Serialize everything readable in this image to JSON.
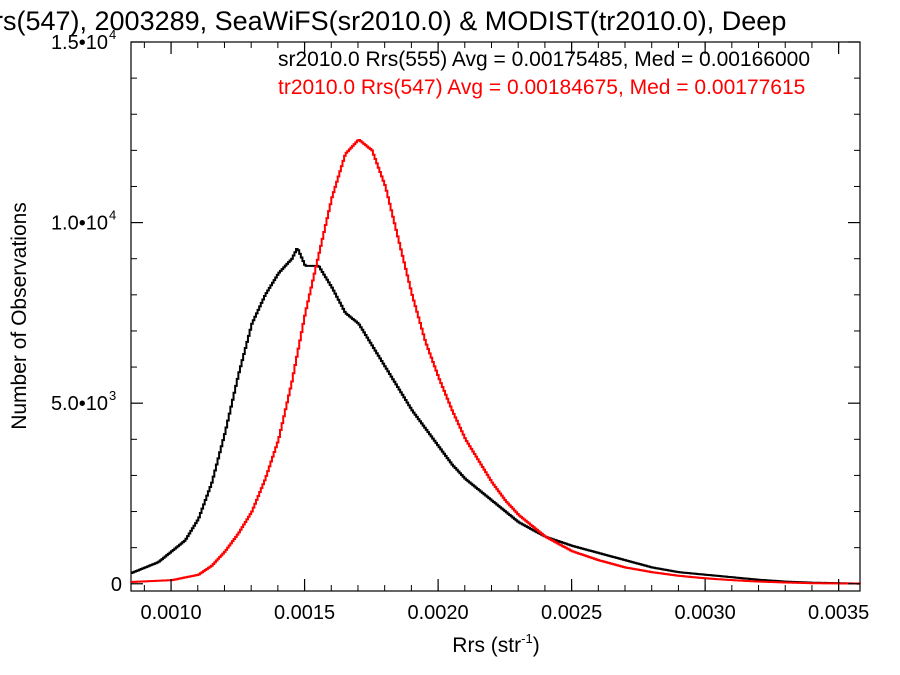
{
  "chart_data": {
    "type": "line",
    "title": "rs(547), 2003289, SeaWiFS(sr2010.0) & MODIST(tr2010.0), Deep",
    "xlabel": "Rrs (str",
    "xlabel_sup": "-1",
    "xlabel_close": ")",
    "ylabel": "Number of Observations",
    "xlim": [
      0.00085,
      0.00358
    ],
    "ylim": [
      -200,
      15000
    ],
    "x_ticks": [
      {
        "value": 0.001,
        "label": "0.0010"
      },
      {
        "value": 0.0015,
        "label": "0.0015"
      },
      {
        "value": 0.002,
        "label": "0.0020"
      },
      {
        "value": 0.0025,
        "label": "0.0025"
      },
      {
        "value": 0.003,
        "label": "0.0030"
      },
      {
        "value": 0.0035,
        "label": "0.0035"
      }
    ],
    "y_ticks": [
      {
        "value": 0,
        "label": "0",
        "sup": ""
      },
      {
        "value": 5000,
        "label": "5.0•10",
        "sup": "3"
      },
      {
        "value": 10000,
        "label": "1.0•10",
        "sup": "4"
      },
      {
        "value": 15000,
        "label": "1.5•10",
        "sup": "4"
      }
    ],
    "annotations": [
      {
        "text": "sr2010.0 Rrs(555) Avg = 0.00175485, Med = 0.00166000",
        "color": "#000000"
      },
      {
        "text": "tr2010.0 Rrs(547) Avg = 0.00184675, Med = 0.00177615",
        "color": "#ff0000"
      }
    ],
    "series": [
      {
        "color": "#000000",
        "points": [
          [
            0.00085,
            300
          ],
          [
            0.00095,
            600
          ],
          [
            0.00105,
            1200
          ],
          [
            0.0011,
            1800
          ],
          [
            0.00115,
            2800
          ],
          [
            0.0012,
            4200
          ],
          [
            0.00125,
            5800
          ],
          [
            0.0013,
            7200
          ],
          [
            0.00135,
            8000
          ],
          [
            0.0014,
            8600
          ],
          [
            0.00145,
            9000
          ],
          [
            0.00147,
            9300
          ],
          [
            0.0015,
            8800
          ],
          [
            0.00155,
            8800
          ],
          [
            0.0016,
            8200
          ],
          [
            0.00165,
            7500
          ],
          [
            0.0017,
            7200
          ],
          [
            0.00175,
            6600
          ],
          [
            0.0018,
            6000
          ],
          [
            0.00185,
            5400
          ],
          [
            0.0019,
            4800
          ],
          [
            0.00195,
            4300
          ],
          [
            0.002,
            3800
          ],
          [
            0.00205,
            3300
          ],
          [
            0.0021,
            2900
          ],
          [
            0.00215,
            2600
          ],
          [
            0.0022,
            2300
          ],
          [
            0.00225,
            2000
          ],
          [
            0.0023,
            1700
          ],
          [
            0.00235,
            1500
          ],
          [
            0.0024,
            1300
          ],
          [
            0.0025,
            1050
          ],
          [
            0.0026,
            850
          ],
          [
            0.0027,
            650
          ],
          [
            0.0028,
            450
          ],
          [
            0.0029,
            320
          ],
          [
            0.003,
            250
          ],
          [
            0.0031,
            180
          ],
          [
            0.0032,
            110
          ],
          [
            0.0033,
            60
          ],
          [
            0.0034,
            30
          ],
          [
            0.00358,
            5
          ]
        ]
      },
      {
        "color": "#ff0000",
        "points": [
          [
            0.00085,
            50
          ],
          [
            0.001,
            100
          ],
          [
            0.0011,
            250
          ],
          [
            0.00115,
            500
          ],
          [
            0.0012,
            900
          ],
          [
            0.00125,
            1400
          ],
          [
            0.0013,
            2000
          ],
          [
            0.00135,
            2900
          ],
          [
            0.0014,
            4000
          ],
          [
            0.00145,
            5600
          ],
          [
            0.0015,
            7500
          ],
          [
            0.00155,
            9100
          ],
          [
            0.0016,
            10700
          ],
          [
            0.00165,
            11900
          ],
          [
            0.0017,
            12300
          ],
          [
            0.00175,
            12000
          ],
          [
            0.0018,
            11000
          ],
          [
            0.00185,
            9500
          ],
          [
            0.0019,
            8000
          ],
          [
            0.00195,
            6700
          ],
          [
            0.002,
            5700
          ],
          [
            0.00205,
            4800
          ],
          [
            0.0021,
            4000
          ],
          [
            0.00215,
            3400
          ],
          [
            0.0022,
            2800
          ],
          [
            0.00225,
            2300
          ],
          [
            0.0023,
            1900
          ],
          [
            0.00235,
            1600
          ],
          [
            0.0024,
            1300
          ],
          [
            0.0025,
            900
          ],
          [
            0.0026,
            650
          ],
          [
            0.0027,
            450
          ],
          [
            0.0028,
            320
          ],
          [
            0.0029,
            220
          ],
          [
            0.003,
            150
          ],
          [
            0.0031,
            100
          ],
          [
            0.0032,
            60
          ],
          [
            0.0033,
            35
          ],
          [
            0.0034,
            15
          ],
          [
            0.00358,
            5
          ]
        ]
      }
    ],
    "grid": false,
    "legend": "none"
  }
}
